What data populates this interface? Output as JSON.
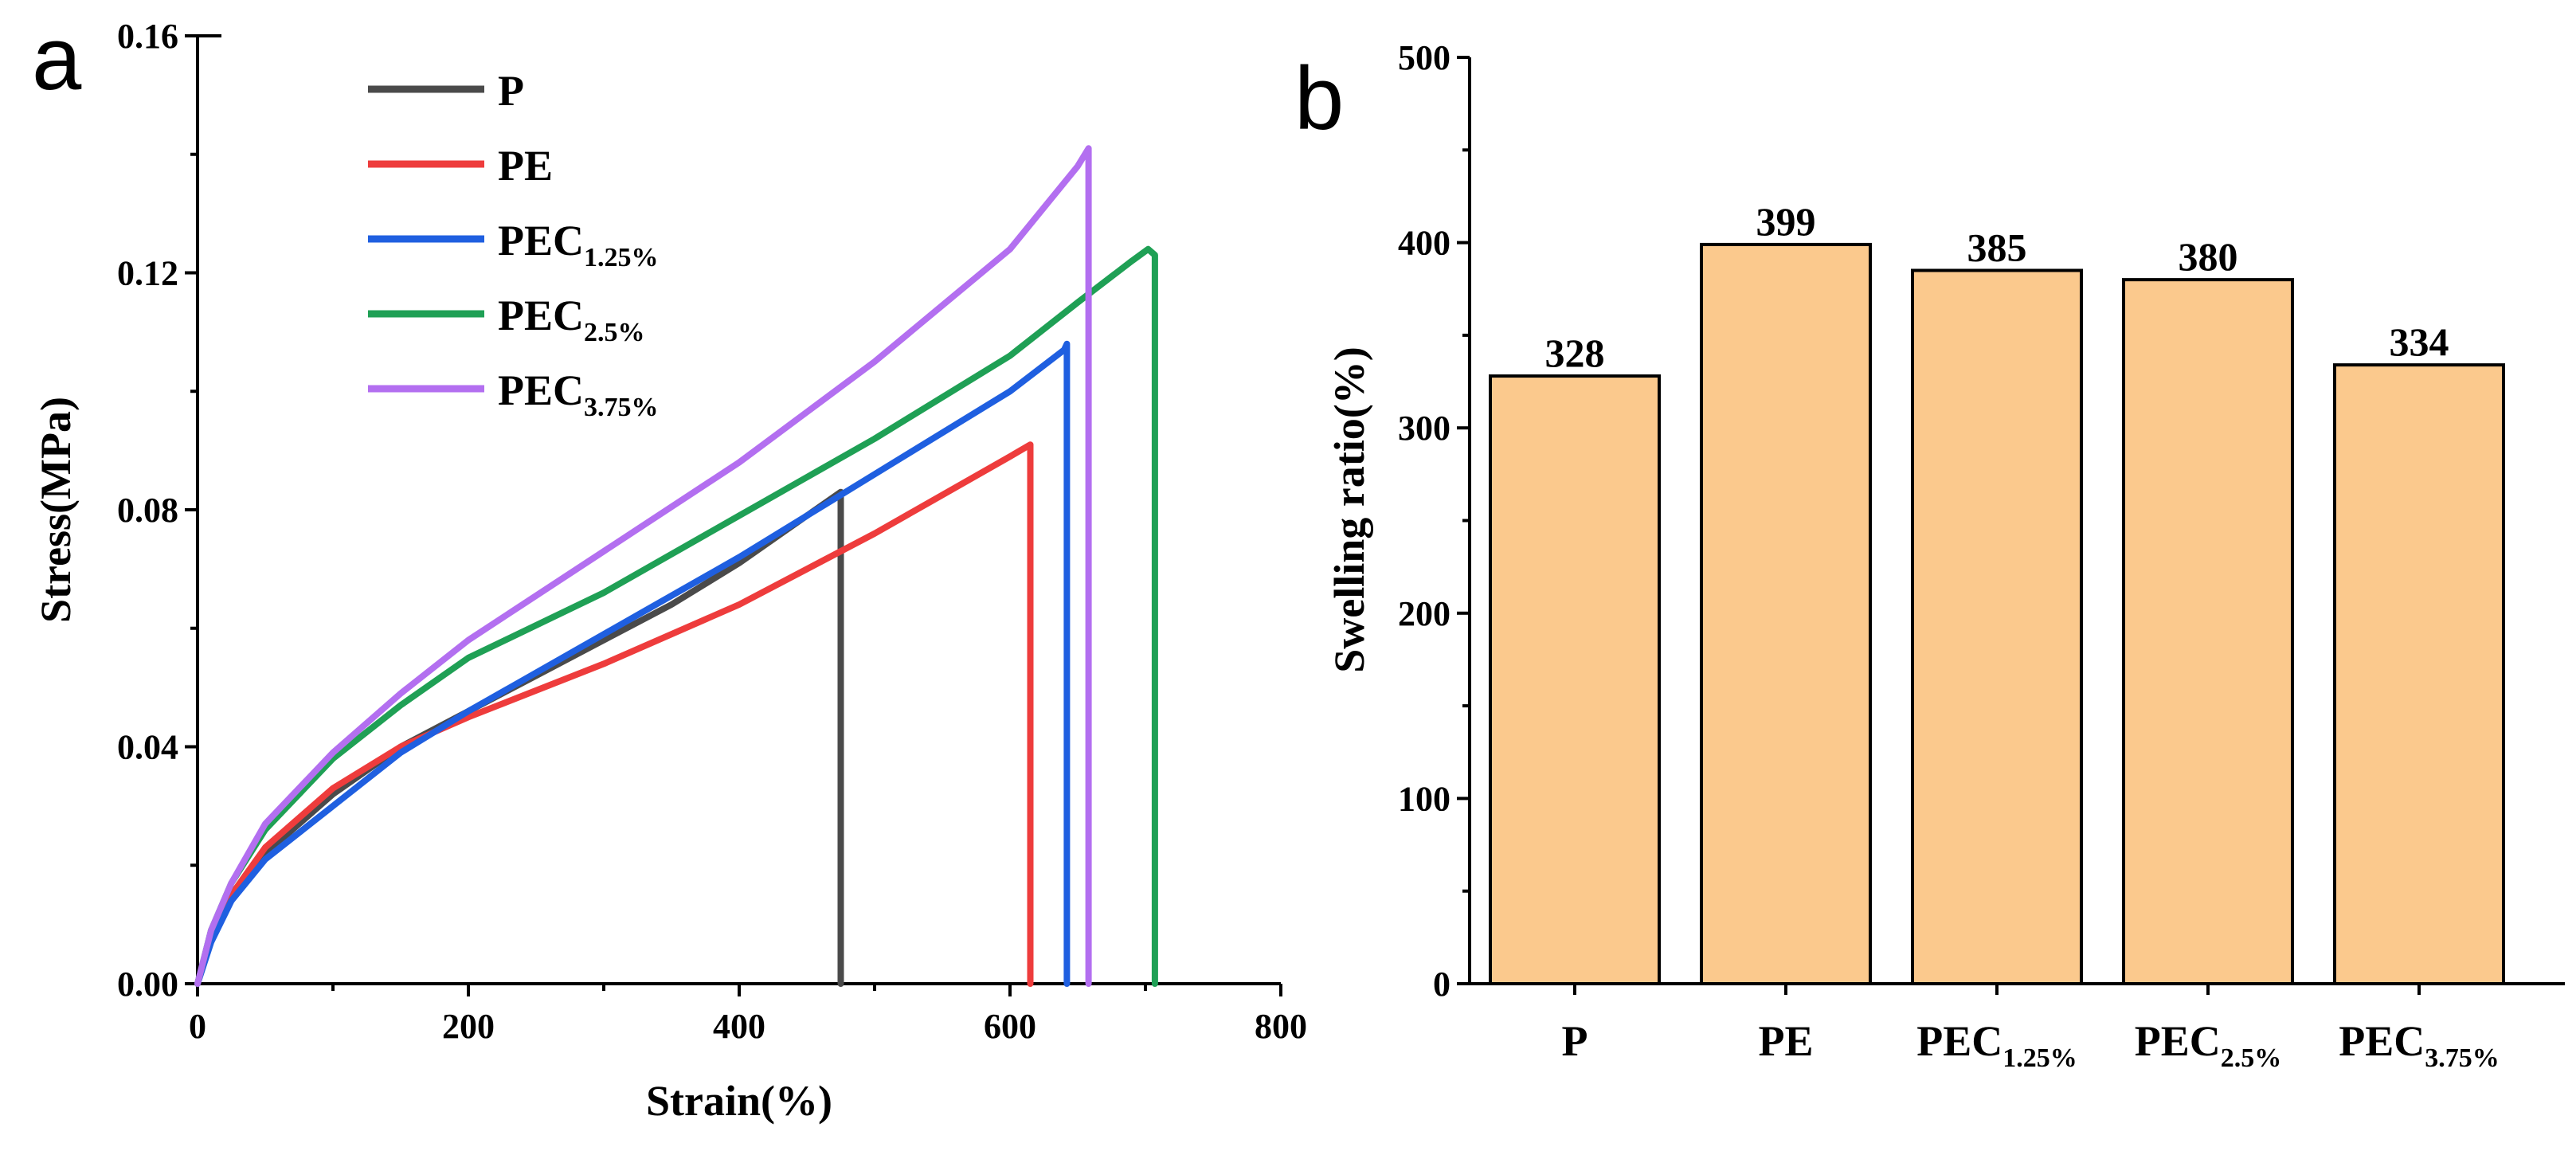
{
  "panels": [
    {
      "letter": "a",
      "chart_data": {
        "type": "line",
        "title": "",
        "xlabel": "Strain(%)",
        "ylabel": "Stress(MPa)",
        "xlim": [
          0,
          800
        ],
        "ylim": [
          0,
          0.16
        ],
        "xticks": [
          "0",
          "200",
          "400",
          "600",
          "800"
        ],
        "yticks": [
          "0.00",
          "0.04",
          "0.08",
          "0.12",
          "0.16"
        ],
        "legend_position": "top-left",
        "series": [
          {
            "name": "P",
            "label_main": "P",
            "label_sub": "",
            "color": "#4a4a4a",
            "x": [
              0,
              10,
              25,
              50,
              100,
              150,
              200,
              250,
              300,
              350,
              400,
              450,
              475,
              475
            ],
            "y": [
              0,
              0.008,
              0.015,
              0.022,
              0.032,
              0.04,
              0.046,
              0.052,
              0.058,
              0.064,
              0.071,
              0.079,
              0.083,
              0
            ]
          },
          {
            "name": "PE",
            "label_main": "PE",
            "label_sub": "",
            "color": "#ee3c3c",
            "x": [
              0,
              10,
              25,
              50,
              100,
              150,
              200,
              300,
              400,
              500,
              600,
              615,
              615
            ],
            "y": [
              0,
              0.008,
              0.015,
              0.023,
              0.033,
              0.04,
              0.045,
              0.054,
              0.064,
              0.076,
              0.089,
              0.091,
              0
            ]
          },
          {
            "name": "PEC1.25%",
            "label_main": "PEC",
            "label_sub": "1.25%",
            "color": "#1f5fe0",
            "x": [
              0,
              10,
              25,
              50,
              100,
              150,
              200,
              300,
              400,
              500,
              600,
              640,
              642,
              642
            ],
            "y": [
              0,
              0.007,
              0.014,
              0.021,
              0.03,
              0.039,
              0.046,
              0.059,
              0.072,
              0.086,
              0.1,
              0.107,
              0.108,
              0
            ]
          },
          {
            "name": "PEC2.5%",
            "label_main": "PEC",
            "label_sub": "2.5%",
            "color": "#1fa055",
            "x": [
              0,
              10,
              25,
              50,
              100,
              150,
              200,
              300,
              400,
              500,
              600,
              650,
              690,
              702,
              707,
              707
            ],
            "y": [
              0,
              0.009,
              0.017,
              0.026,
              0.038,
              0.047,
              0.055,
              0.066,
              0.079,
              0.092,
              0.106,
              0.115,
              0.122,
              0.124,
              0.123,
              0
            ]
          },
          {
            "name": "PEC3.75%",
            "label_main": "PEC",
            "label_sub": "3.75%",
            "color": "#b36ff0",
            "x": [
              0,
              10,
              25,
              50,
              100,
              150,
              200,
              300,
              400,
              500,
              600,
              650,
              658,
              658
            ],
            "y": [
              0,
              0.009,
              0.017,
              0.027,
              0.039,
              0.049,
              0.058,
              0.073,
              0.088,
              0.105,
              0.124,
              0.138,
              0.141,
              0
            ]
          }
        ]
      }
    },
    {
      "letter": "b",
      "chart_data": {
        "type": "bar",
        "title": "",
        "xlabel": "",
        "ylabel": "Swelling ratio(%)",
        "ylim": [
          0,
          500
        ],
        "yticks": [
          "0",
          "100",
          "200",
          "300",
          "400",
          "500"
        ],
        "categories": [
          {
            "name": "P",
            "main": "P",
            "sub": ""
          },
          {
            "name": "PE",
            "main": "PE",
            "sub": ""
          },
          {
            "name": "PEC1.25%",
            "main": "PEC",
            "sub": "1.25%"
          },
          {
            "name": "PEC2.5%",
            "main": "PEC",
            "sub": "2.5%"
          },
          {
            "name": "PEC3.75%",
            "main": "PEC",
            "sub": "3.75%"
          }
        ],
        "values": [
          328,
          399,
          385,
          380,
          334
        ],
        "value_labels": [
          "328",
          "399",
          "385",
          "380",
          "334"
        ],
        "bar_color": "#fbc98d"
      }
    }
  ]
}
